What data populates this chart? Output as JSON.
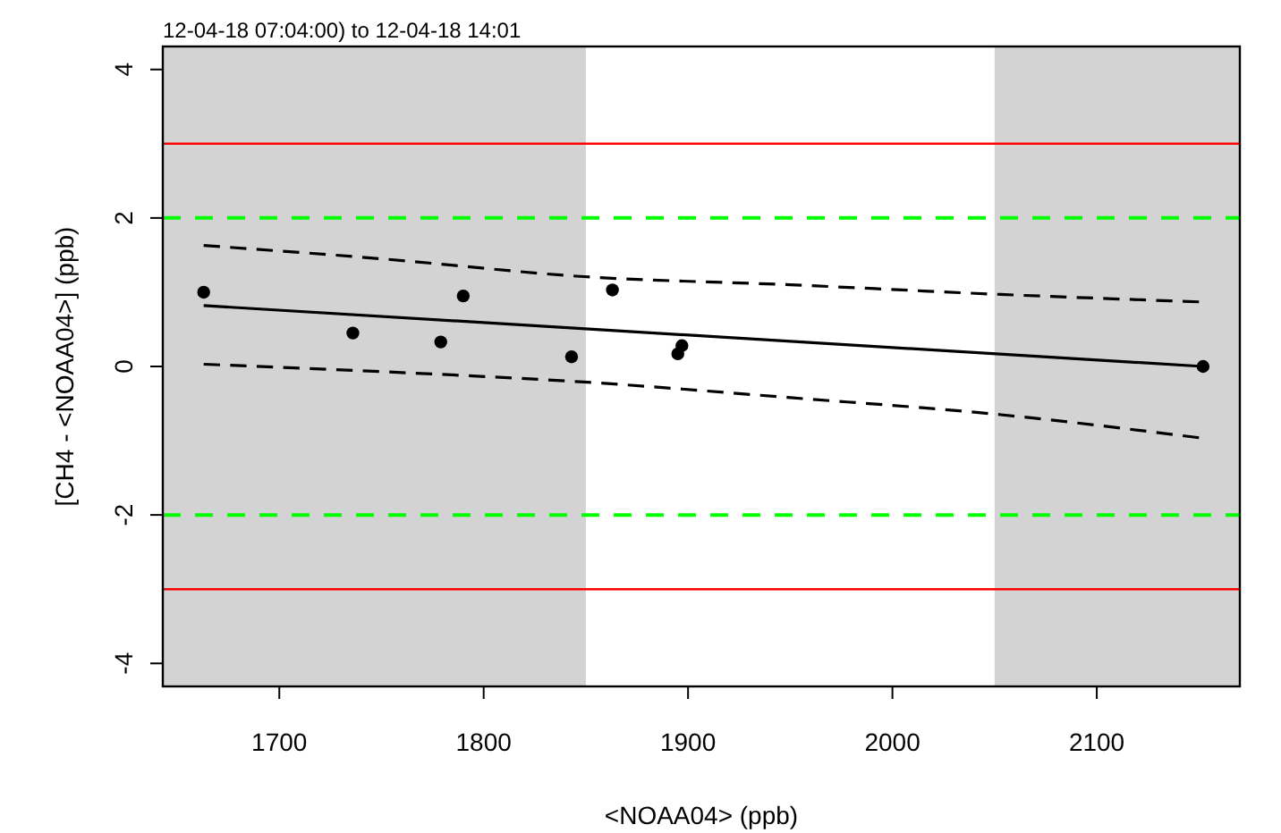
{
  "chart_data": {
    "type": "scatter",
    "title": "12-04-18 07:04:00) to 12-04-18 14:01",
    "xlabel": "<NOAA04> (ppb)",
    "ylabel": "[CH4 - <NOAA04>] (ppb)",
    "xlim": [
      1643,
      2170
    ],
    "xticks": [
      1700,
      1800,
      1900,
      2000,
      2100
    ],
    "ylim": [
      -4.31,
      4.31
    ],
    "yticks": [
      -4,
      -2,
      0,
      2,
      4
    ],
    "grid": false,
    "series": [
      {
        "marker": "circle",
        "color": "#000000",
        "x": [
          1663,
          1736,
          1779,
          1790,
          1843,
          1863,
          1895,
          1897,
          2152
        ],
        "values": [
          1.0,
          0.45,
          0.33,
          0.95,
          0.13,
          1.03,
          0.17,
          0.28,
          0.0
        ]
      },
      {
        "type": "line",
        "color": "#000000",
        "line_style": "solid",
        "x": [
          1663,
          2152
        ],
        "values": [
          0.82,
          0.0
        ]
      },
      {
        "type": "line",
        "color": "#000000",
        "line_style": "dashed",
        "x": [
          1663,
          1750,
          1849,
          1950,
          2053,
          2150
        ],
        "values": [
          1.63,
          1.45,
          1.21,
          1.1,
          0.97,
          0.87
        ]
      },
      {
        "type": "line",
        "color": "#000000",
        "line_style": "dashed",
        "x": [
          1663,
          1750,
          1849,
          1950,
          2053,
          2150
        ],
        "values": [
          0.03,
          -0.07,
          -0.21,
          -0.42,
          -0.65,
          -0.96
        ]
      }
    ],
    "ref_lines": [
      {
        "axis": "y",
        "value": 3,
        "color": "#ff0000",
        "line_style": "solid"
      },
      {
        "axis": "y",
        "value": -3,
        "color": "#ff0000",
        "line_style": "solid"
      },
      {
        "axis": "y",
        "value": 2,
        "color": "#00ff00",
        "line_style": "dashed"
      },
      {
        "axis": "y",
        "value": -2,
        "color": "#00ff00",
        "line_style": "dashed"
      }
    ],
    "bands": [
      {
        "axis": "x",
        "from": 1643,
        "to": 1850,
        "color": "#d3d3d3"
      },
      {
        "axis": "x",
        "from": 2050,
        "to": 2170,
        "color": "#d3d3d3"
      }
    ]
  }
}
